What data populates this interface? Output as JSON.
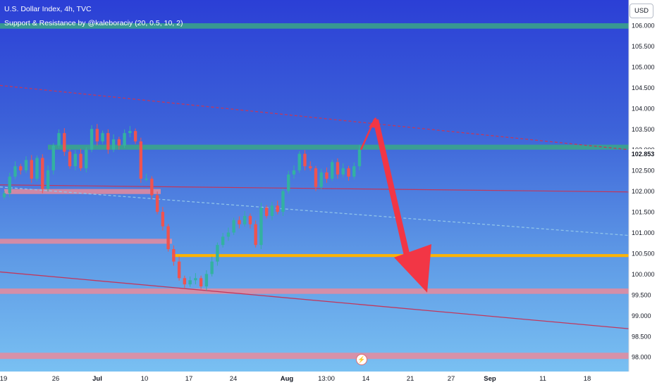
{
  "header": {
    "title": "U.S. Dollar Index, 4h, TVC",
    "indicator": "Support & Resistance by @kaleboraciy (20, 0.5, 10, 2)"
  },
  "currency_button": "USD",
  "last_price": "102.853",
  "colors": {
    "bull": "#33b1a1",
    "bear": "#ef5350",
    "zone_green": "#3aa786",
    "zone_red": "#e7899c",
    "zone_orange": "#ffb300",
    "arrow": "#f23645",
    "trend": "#c2375c"
  },
  "icons": {
    "alert": "lightning-bolt-icon"
  },
  "chart_data": {
    "type": "candlestick",
    "x_ticks": [
      "19",
      "26",
      "Jul",
      "10",
      "17",
      "24",
      "Aug",
      "13:00",
      "14",
      "21",
      "27",
      "Sep",
      "11",
      "18"
    ],
    "y_ticks": [
      "106.000",
      "105.500",
      "105.000",
      "104.500",
      "104.000",
      "103.500",
      "103.000",
      "102.500",
      "102.000",
      "101.500",
      "101.000",
      "100.500",
      "100.000",
      "99.500",
      "99.000",
      "98.500",
      "98.000"
    ],
    "ylim": [
      98.0,
      106.0
    ],
    "close_path": [
      101.95,
      102.35,
      102.6,
      102.5,
      102.75,
      102.3,
      102.8,
      102.05,
      102.5,
      103.1,
      103.4,
      102.95,
      102.6,
      102.9,
      102.55,
      103.0,
      103.5,
      103.2,
      103.4,
      103.0,
      103.25,
      103.1,
      103.4,
      103.45,
      103.2,
      102.3,
      102.3,
      101.9,
      101.5,
      101.15,
      100.6,
      100.3,
      99.9,
      99.75,
      99.85,
      99.9,
      99.7,
      100.0,
      100.3,
      100.7,
      100.9,
      101.0,
      101.3,
      101.2,
      101.4,
      101.2,
      100.7,
      101.6,
      101.4,
      101.65,
      101.5,
      102.0,
      102.4,
      102.5,
      102.9,
      102.6,
      102.55,
      102.1,
      102.45,
      102.3,
      102.7,
      102.4,
      102.55,
      102.35,
      102.6,
      103.0
    ],
    "support_resistance_zones": [
      {
        "from": 106.05,
        "to": 105.92,
        "color": "green"
      },
      {
        "from": 103.12,
        "to": 103.0,
        "color": "green"
      },
      {
        "from": 102.05,
        "to": 101.93,
        "color": "red"
      },
      {
        "from": 100.85,
        "to": 100.73,
        "color": "red"
      },
      {
        "from": 100.48,
        "to": 100.41,
        "color": "orange"
      },
      {
        "from": 99.65,
        "to": 99.52,
        "color": "red"
      },
      {
        "from": 98.1,
        "to": 97.95,
        "color": "red"
      }
    ],
    "trend_lines": [
      {
        "style": "dashed",
        "from": [
          0,
          104.55
        ],
        "to": [
          892,
          103.0
        ]
      },
      {
        "style": "solid",
        "from": [
          0,
          102.15
        ],
        "to": [
          892,
          101.98
        ]
      },
      {
        "style": "solid",
        "from": [
          0,
          100.05
        ],
        "to": [
          892,
          98.68
        ]
      },
      {
        "style": "dashed",
        "from": [
          0,
          102.1
        ],
        "to": [
          892,
          100.93
        ]
      }
    ],
    "forecast_arrow": {
      "start": 103.0,
      "peak": 103.75,
      "target": 99.55
    },
    "grid": false,
    "legend": "none"
  }
}
